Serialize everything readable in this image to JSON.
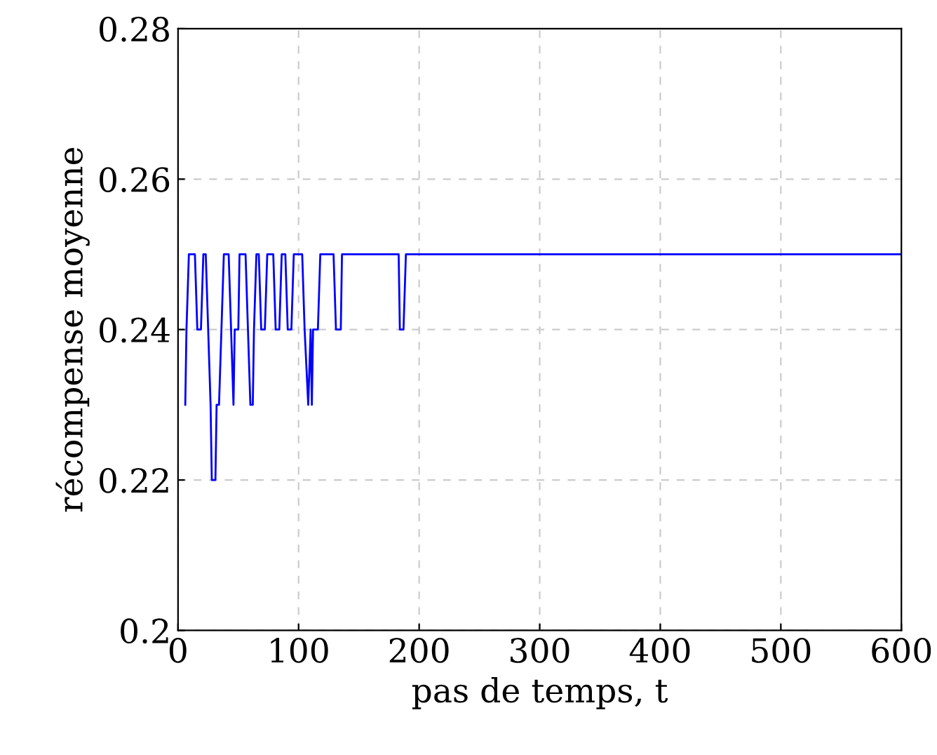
{
  "chart_data": {
    "type": "line",
    "xlabel": "pas de temps, t",
    "ylabel": "récompense moyenne",
    "series": [
      {
        "color": "#0000ff",
        "x": [
          6,
          7,
          9,
          14,
          16,
          19,
          21,
          23,
          25,
          27,
          28,
          31,
          32,
          34,
          36,
          38,
          42,
          44,
          46,
          47,
          50,
          51,
          56,
          58,
          60,
          62,
          63,
          65,
          67,
          69,
          72,
          74,
          79,
          81,
          84,
          86,
          89,
          91,
          94,
          96,
          103,
          105,
          108,
          110,
          111,
          112,
          116,
          118,
          129,
          131,
          135,
          136,
          183,
          184,
          187,
          189,
          600
        ],
        "values": [
          0.23,
          0.24,
          0.25,
          0.25,
          0.24,
          0.24,
          0.25,
          0.25,
          0.24,
          0.23,
          0.22,
          0.22,
          0.23,
          0.23,
          0.24,
          0.25,
          0.25,
          0.24,
          0.23,
          0.24,
          0.24,
          0.25,
          0.25,
          0.24,
          0.23,
          0.23,
          0.24,
          0.25,
          0.25,
          0.24,
          0.24,
          0.25,
          0.25,
          0.24,
          0.24,
          0.25,
          0.25,
          0.24,
          0.24,
          0.25,
          0.25,
          0.24,
          0.23,
          0.24,
          0.23,
          0.24,
          0.24,
          0.25,
          0.25,
          0.24,
          0.24,
          0.25,
          0.25,
          0.24,
          0.24,
          0.25,
          0.25
        ]
      }
    ],
    "xlim": [
      0,
      600
    ],
    "xticks": [
      0,
      100,
      200,
      300,
      400,
      500,
      600
    ],
    "ylim": [
      0.2,
      0.28
    ],
    "yticks": [
      {
        "value": 0.2,
        "label": "0.2"
      },
      0.22,
      0.24,
      0.26,
      0.28
    ],
    "grid": true,
    "marker": "none",
    "line_style": "solid",
    "legend": false
  }
}
